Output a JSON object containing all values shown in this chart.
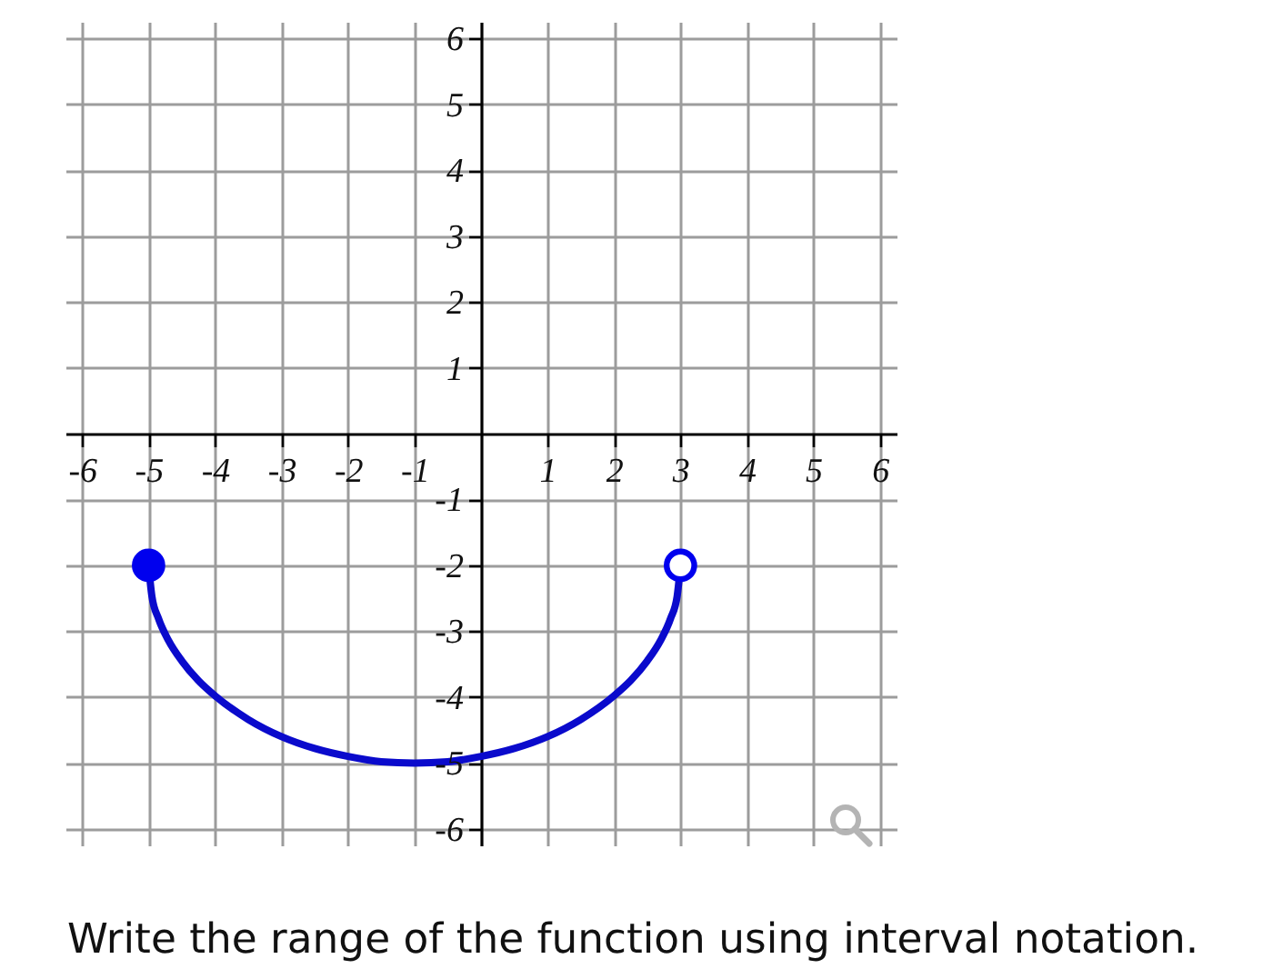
{
  "chart_data": {
    "type": "line",
    "series": [
      {
        "color": "#0a0acc",
        "x": [
          -5,
          -4.95,
          -4.85,
          -4.7,
          -4.5,
          -4.25,
          -4,
          -3.5,
          -3,
          -2.5,
          -2,
          -1.5,
          -1,
          -0.5,
          0,
          0.5,
          1,
          1.5,
          2,
          2.25,
          2.5,
          2.7,
          2.85,
          2.95,
          3
        ],
        "values": [
          -2,
          -2.47,
          -2.81,
          -3.14,
          -3.45,
          -3.75,
          -3.98,
          -4.34,
          -4.6,
          -4.78,
          -4.9,
          -4.98,
          -5,
          -4.98,
          -4.9,
          -4.78,
          -4.6,
          -4.34,
          -3.98,
          -3.75,
          -3.45,
          -3.14,
          -2.81,
          -2.47,
          -2
        ]
      },
      {
        "type": "scatter",
        "color": "#0000ee",
        "colors": [
          "#0000ee",
          "#ffffff"
        ],
        "marker": "circle",
        "x": [
          -5,
          3
        ],
        "values": [
          -2,
          -2
        ]
      }
    ],
    "xlim": [
      -6.25,
      6.25
    ],
    "ylim": [
      -6.25,
      6.25
    ],
    "xticks": [
      -6,
      -5,
      -4,
      -3,
      -2,
      -1,
      1,
      2,
      3,
      4,
      5,
      6
    ],
    "yticks": [
      -6,
      -5,
      -4,
      -3,
      -2,
      -1,
      1,
      2,
      3,
      4,
      5,
      6
    ],
    "grid": true,
    "annotations": [
      "Write the range of the function using interval notation."
    ]
  }
}
